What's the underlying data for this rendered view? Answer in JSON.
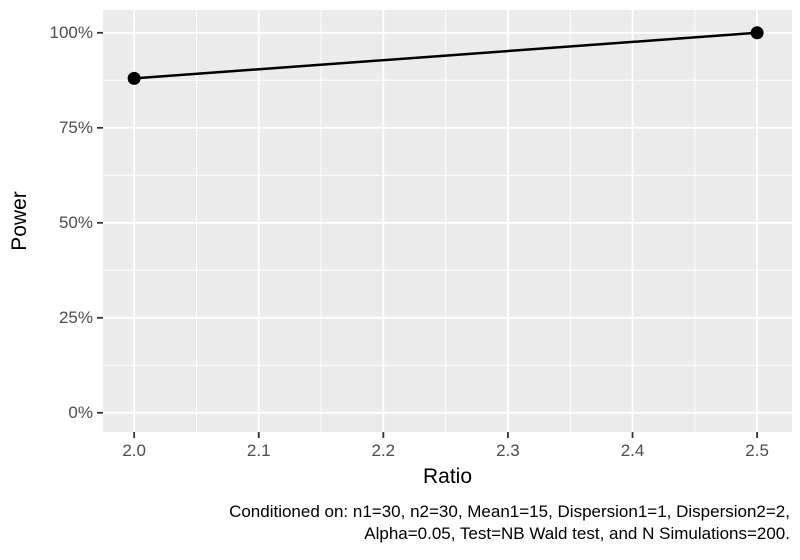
{
  "chart_data": {
    "type": "line",
    "title": "",
    "xlabel": "Ratio",
    "ylabel": "Power",
    "series": [
      {
        "name": "Power",
        "x": [
          2.0,
          2.5
        ],
        "y": [
          88,
          100
        ]
      }
    ],
    "y_unit": "%",
    "x_ticks": {
      "values": [
        2.0,
        2.1,
        2.2,
        2.3,
        2.4,
        2.5
      ],
      "labels": [
        "2.0",
        "2.1",
        "2.2",
        "2.3",
        "2.4",
        "2.5"
      ]
    },
    "y_ticks": {
      "values": [
        0,
        25,
        50,
        75,
        100
      ],
      "labels": [
        "0%",
        "25%",
        "50%",
        "75%",
        "100%"
      ]
    },
    "x_minor": [
      2.05,
      2.15,
      2.25,
      2.35,
      2.45
    ],
    "y_minor": [
      12.5,
      37.5,
      62.5,
      87.5
    ],
    "xlim": [
      1.975,
      2.528
    ],
    "ylim": [
      -5.05,
      106.0
    ],
    "grid": true,
    "legend": "none",
    "colors": {
      "panel_bg": "#EBEBEB",
      "grid": "#FFFFFF",
      "line": "#000000",
      "point": "#000000",
      "tick_mark": "#333333",
      "tick_label": "#4D4D4D",
      "axis_title": "#000000",
      "caption": "#000000",
      "figure_bg": "#FFFFFF"
    }
  },
  "caption": {
    "line1": "Conditioned on: n1=30, n2=30, Mean1=15, Dispersion1=1, Dispersion2=2,",
    "line2": "Alpha=0.05, Test=NB Wald test, and N Simulations=200."
  }
}
